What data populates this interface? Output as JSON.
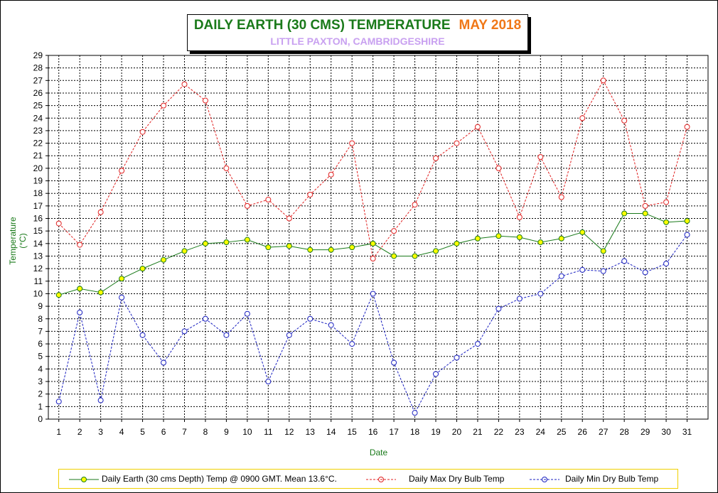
{
  "chart_data": {
    "type": "line",
    "title": "DAILY EARTH (30 CMS) TEMPERATURE",
    "title_month": "MAY 2018",
    "subtitle": "LITTLE PAXTON, CAMBRIDGESHIRE",
    "xlabel": "Date",
    "ylabel": "Temperature (°C)",
    "ylim": [
      0,
      29
    ],
    "grid": true,
    "legend_position": "bottom",
    "x": [
      1,
      2,
      3,
      4,
      5,
      6,
      7,
      8,
      9,
      10,
      11,
      12,
      13,
      14,
      15,
      16,
      17,
      18,
      19,
      20,
      21,
      22,
      23,
      24,
      25,
      26,
      27,
      28,
      29,
      30,
      31
    ],
    "series": [
      {
        "name": "Daily Earth (30 cms Depth) Temp @ 0900 GMT. Mean 13.6°C.",
        "color": "#1a7a1a",
        "marker_fill": "#ffff00",
        "style": "solid",
        "values": [
          9.9,
          10.4,
          10.1,
          11.2,
          12.0,
          12.7,
          13.4,
          14.0,
          14.1,
          14.3,
          13.7,
          13.8,
          13.5,
          13.5,
          13.7,
          14.0,
          13.0,
          13.0,
          13.4,
          14.0,
          14.4,
          14.6,
          14.5,
          14.1,
          14.4,
          14.9,
          13.4,
          16.4,
          16.4,
          15.7,
          15.8
        ]
      },
      {
        "name": "Daily Max Dry Bulb Temp",
        "color": "#e02020",
        "marker_fill": "none",
        "style": "dashed",
        "values": [
          15.6,
          13.9,
          16.5,
          19.8,
          22.9,
          25.0,
          26.7,
          25.4,
          20.0,
          17.0,
          17.5,
          16.0,
          17.9,
          19.5,
          22.0,
          12.8,
          15.0,
          17.1,
          20.8,
          22.0,
          23.3,
          20.0,
          16.1,
          20.9,
          17.7,
          24.0,
          27.0,
          23.8,
          17.0,
          17.3,
          23.3
        ]
      },
      {
        "name": "Daily Min Dry Bulb Temp",
        "color": "#1a20c0",
        "marker_fill": "none",
        "style": "dashed",
        "values": [
          1.4,
          8.5,
          1.5,
          9.7,
          6.7,
          4.5,
          7.0,
          8.0,
          6.7,
          8.4,
          3.0,
          6.7,
          8.0,
          7.5,
          6.0,
          10.0,
          4.5,
          0.5,
          3.6,
          4.9,
          6.0,
          8.8,
          9.6,
          10.0,
          11.4,
          11.9,
          11.8,
          12.6,
          11.7,
          12.4,
          14.7
        ]
      }
    ]
  }
}
